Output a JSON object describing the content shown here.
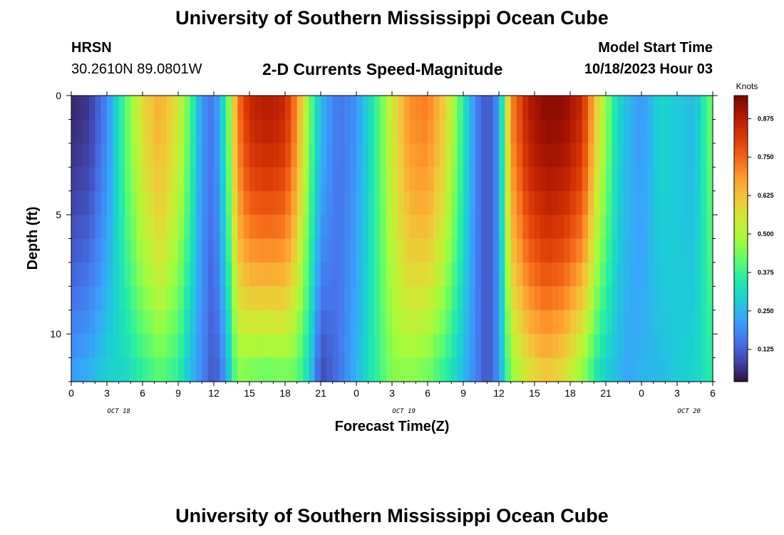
{
  "header": {
    "title": "University of Southern Mississippi Ocean Cube",
    "station": "HRSN",
    "coords": "30.2610N  89.0801W",
    "model_label": "Model Start Time",
    "model_value": "10/18/2023 Hour 03"
  },
  "footer": {
    "title": "University of Southern Mississippi Ocean Cube"
  },
  "colors": {
    "colormap": [
      "#30123b",
      "#4145ab",
      "#4675ed",
      "#39a2fc",
      "#1bcfd4",
      "#24eca6",
      "#61fc6c",
      "#a4fc3b",
      "#d1e834",
      "#f3c63a",
      "#fe9b2d",
      "#f36315",
      "#d93806",
      "#b11901",
      "#7a0403"
    ],
    "frame": "#000000"
  },
  "chart_data": {
    "type": "heatmap",
    "title": "2-D Currents Speed-Magnitude",
    "xlabel": "Forecast Time(Z)",
    "ylabel": "Depth (ft)",
    "x_ticks": [
      "0",
      "3",
      "6",
      "9",
      "12",
      "15",
      "18",
      "21",
      "0",
      "3",
      "6",
      "9",
      "12",
      "15",
      "18",
      "21",
      "0",
      "3",
      "6"
    ],
    "date_labels": [
      "OCT 18",
      "OCT 19",
      "OCT 20"
    ],
    "y_ticks": [
      "0",
      "5",
      "10"
    ],
    "ylim": [
      0,
      12
    ],
    "colorbar": {
      "title": "Knots",
      "ticks": [
        "0.875",
        "0.750",
        "0.625",
        "0.500",
        "0.375",
        "0.250",
        "0.125"
      ],
      "range": [
        0.02,
        0.95
      ]
    },
    "x_hours": 54,
    "depth_levels": 12,
    "speed_profiles": [
      {
        "t": 0,
        "surface": 0.05,
        "bottom": 0.22
      },
      {
        "t": 1.5,
        "surface": 0.07,
        "bottom": 0.25
      },
      {
        "t": 3,
        "surface": 0.18,
        "bottom": 0.3
      },
      {
        "t": 4.5,
        "surface": 0.4,
        "bottom": 0.3
      },
      {
        "t": 6,
        "surface": 0.58,
        "bottom": 0.35
      },
      {
        "t": 7.5,
        "surface": 0.66,
        "bottom": 0.4
      },
      {
        "t": 9,
        "surface": 0.55,
        "bottom": 0.35
      },
      {
        "t": 10,
        "surface": 0.4,
        "bottom": 0.25
      },
      {
        "t": 11,
        "surface": 0.2,
        "bottom": 0.18
      },
      {
        "t": 12,
        "surface": 0.15,
        "bottom": 0.1
      },
      {
        "t": 13,
        "surface": 0.35,
        "bottom": 0.2
      },
      {
        "t": 14,
        "surface": 0.72,
        "bottom": 0.45
      },
      {
        "t": 15,
        "surface": 0.85,
        "bottom": 0.42
      },
      {
        "t": 16.5,
        "surface": 0.88,
        "bottom": 0.4
      },
      {
        "t": 18,
        "surface": 0.85,
        "bottom": 0.42
      },
      {
        "t": 19,
        "surface": 0.7,
        "bottom": 0.4
      },
      {
        "t": 20,
        "surface": 0.45,
        "bottom": 0.3
      },
      {
        "t": 21,
        "surface": 0.25,
        "bottom": 0.08
      },
      {
        "t": 22.5,
        "surface": 0.15,
        "bottom": 0.15
      },
      {
        "t": 24,
        "surface": 0.2,
        "bottom": 0.25
      },
      {
        "t": 25.5,
        "surface": 0.35,
        "bottom": 0.35
      },
      {
        "t": 27,
        "surface": 0.55,
        "bottom": 0.45
      },
      {
        "t": 28.5,
        "surface": 0.7,
        "bottom": 0.45
      },
      {
        "t": 30,
        "surface": 0.72,
        "bottom": 0.42
      },
      {
        "t": 31.5,
        "surface": 0.6,
        "bottom": 0.35
      },
      {
        "t": 33,
        "surface": 0.35,
        "bottom": 0.25
      },
      {
        "t": 34,
        "surface": 0.18,
        "bottom": 0.18
      },
      {
        "t": 35,
        "surface": 0.1,
        "bottom": 0.1
      },
      {
        "t": 36,
        "surface": 0.2,
        "bottom": 0.2
      },
      {
        "t": 37,
        "surface": 0.7,
        "bottom": 0.45
      },
      {
        "t": 38.5,
        "surface": 0.88,
        "bottom": 0.55
      },
      {
        "t": 40,
        "surface": 0.93,
        "bottom": 0.6
      },
      {
        "t": 41.5,
        "surface": 0.92,
        "bottom": 0.55
      },
      {
        "t": 43,
        "surface": 0.85,
        "bottom": 0.45
      },
      {
        "t": 44.5,
        "surface": 0.55,
        "bottom": 0.3
      },
      {
        "t": 46,
        "surface": 0.3,
        "bottom": 0.25
      },
      {
        "t": 47,
        "surface": 0.25,
        "bottom": 0.22
      },
      {
        "t": 48,
        "surface": 0.2,
        "bottom": 0.25
      },
      {
        "t": 49.5,
        "surface": 0.3,
        "bottom": 0.25
      },
      {
        "t": 51,
        "surface": 0.28,
        "bottom": 0.28
      },
      {
        "t": 52.5,
        "surface": 0.25,
        "bottom": 0.3
      },
      {
        "t": 54,
        "surface": 0.45,
        "bottom": 0.35
      }
    ]
  }
}
